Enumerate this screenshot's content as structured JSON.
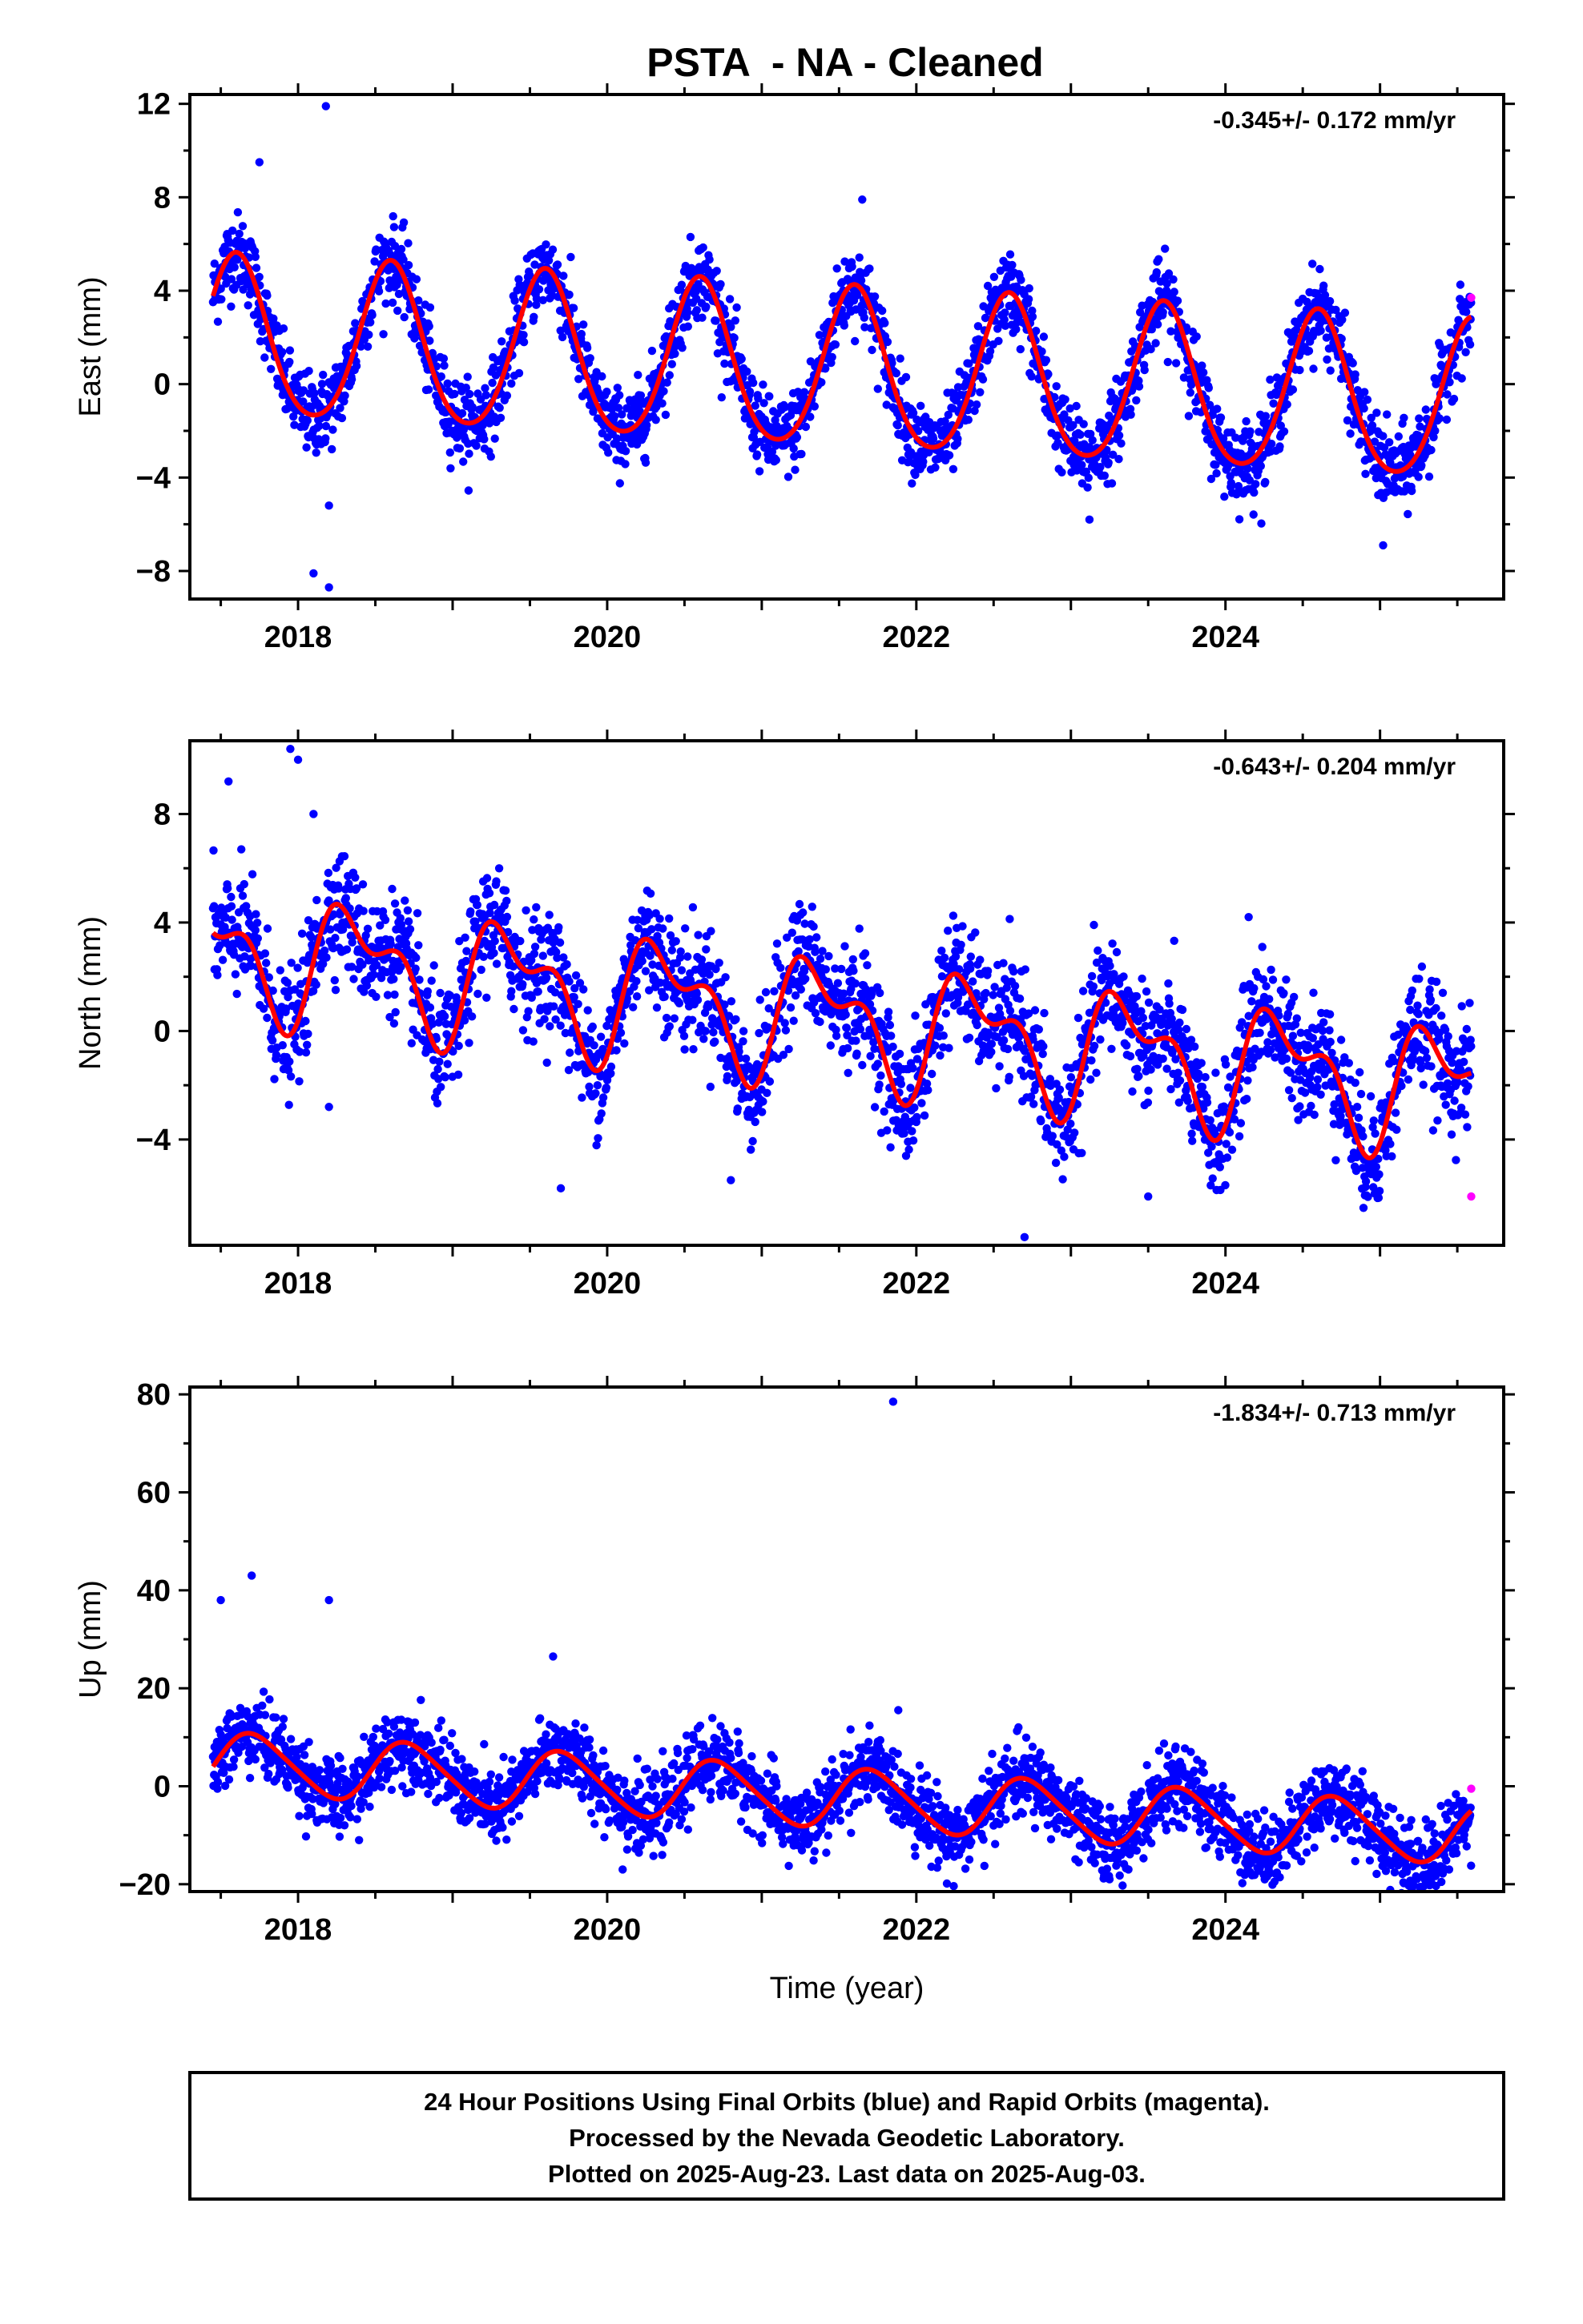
{
  "title": "PSTA  - NA - Cleaned",
  "footer": {
    "line1": "24 Hour Positions Using Final Orbits (blue) and Rapid Orbits (magenta).",
    "line2": "Processed by the Nevada Geodetic Laboratory.",
    "line3": "Plotted on 2025-Aug-23. Last data on 2025-Aug-03."
  },
  "colors": {
    "final": "#0000ff",
    "rapid": "#ff00ff",
    "model": "#ff0000",
    "frame": "#000000"
  },
  "chart_data": [
    {
      "type": "scatter",
      "ylabel": "East (mm)",
      "xlabel": "",
      "rate": "-0.345+/- 0.172 mm/yr",
      "xlim": [
        2017.3,
        2025.8
      ],
      "ylim": [
        -9.2,
        12.4
      ],
      "xticks": [
        2018,
        2020,
        2022,
        2024
      ],
      "xtick_labels": [
        "2018",
        "2020",
        "2022",
        "2024"
      ],
      "yticks": [
        12,
        8,
        4,
        0,
        -4,
        -8
      ],
      "ytick_labels": [
        "12",
        "8",
        "4",
        "0",
        "−4",
        "−8"
      ],
      "data_start": 2017.45,
      "data_end": 2025.59,
      "series": [
        {
          "role": "final",
          "model": {
            "offset": 1.9,
            "trend": -0.345,
            "amp": 3.4,
            "phase_peak": 0.6,
            "semi_amp": 0.4,
            "semi_phase": 0.1
          },
          "scatter": 0.85,
          "outliers": [
            [
              2017.75,
              9.5
            ],
            [
              2018.18,
              11.9
            ],
            [
              2018.1,
              -8.1
            ],
            [
              2018.2,
              -8.7
            ],
            [
              2018.2,
              -5.2
            ],
            [
              2021.65,
              7.9
            ],
            [
              2025.02,
              -6.9
            ],
            [
              2023.12,
              -5.8
            ]
          ]
        }
      ],
      "rapid_points": [
        [
          2025.59,
          3.7
        ]
      ]
    },
    {
      "type": "scatter",
      "ylabel": "North (mm)",
      "xlabel": "",
      "rate": "-0.643+/- 0.204 mm/yr",
      "xlim": [
        2017.3,
        2025.8
      ],
      "ylim": [
        -7.9,
        10.7
      ],
      "xticks": [
        2018,
        2020,
        2022,
        2024
      ],
      "xtick_labels": [
        "2018",
        "2020",
        "2022",
        "2024"
      ],
      "yticks": [
        8,
        4,
        0,
        -4
      ],
      "ytick_labels": [
        "8",
        "4",
        "0",
        "−4"
      ],
      "data_start": 2017.45,
      "data_end": 2025.59,
      "series": [
        {
          "role": "final",
          "model": {
            "offset": 3.0,
            "trend": -0.643,
            "amp": 1.9,
            "phase_peak": 0.38,
            "semi_amp": 1.1,
            "semi_phase": 0.2
          },
          "scatter": 1.05,
          "outliers": [
            [
              2017.55,
              9.2
            ],
            [
              2017.95,
              10.4
            ],
            [
              2018.0,
              10.0
            ],
            [
              2018.1,
              8.0
            ],
            [
              2019.7,
              -5.8
            ],
            [
              2020.8,
              -5.5
            ],
            [
              2022.7,
              -7.6
            ],
            [
              2023.5,
              -6.1
            ],
            [
              2024.15,
              4.2
            ],
            [
              2018.2,
              -2.8
            ]
          ]
        }
      ],
      "rapid_points": [
        [
          2025.59,
          -6.1
        ]
      ]
    },
    {
      "type": "scatter",
      "ylabel": "Up (mm)",
      "xlabel": "Time (year)",
      "rate": "-1.834+/- 0.713 mm/yr",
      "xlim": [
        2017.3,
        2025.8
      ],
      "ylim": [
        -21.5,
        81.5
      ],
      "xticks": [
        2018,
        2020,
        2022,
        2024
      ],
      "xtick_labels": [
        "2018",
        "2020",
        "2022",
        "2024"
      ],
      "yticks": [
        80,
        60,
        40,
        20,
        0,
        -20
      ],
      "ytick_labels": [
        "80",
        "60",
        "40",
        "20",
        "0",
        "−20"
      ],
      "data_start": 2017.45,
      "data_end": 2025.59,
      "series": [
        {
          "role": "final",
          "model": {
            "offset": 5.0,
            "trend": -1.834,
            "amp": 6.0,
            "phase_peak": 0.72,
            "semi_amp": 0.8,
            "semi_phase": 0.1
          },
          "scatter": 3.8,
          "outliers": [
            [
              2021.85,
              78.5
            ],
            [
              2017.7,
              43.0
            ],
            [
              2018.2,
              38.0
            ],
            [
              2017.5,
              38.0
            ],
            [
              2019.65,
              26.5
            ],
            [
              2023.25,
              -19.0
            ],
            [
              2020.1,
              -17.0
            ]
          ]
        }
      ],
      "rapid_points": [
        [
          2025.59,
          -0.5
        ]
      ]
    }
  ]
}
